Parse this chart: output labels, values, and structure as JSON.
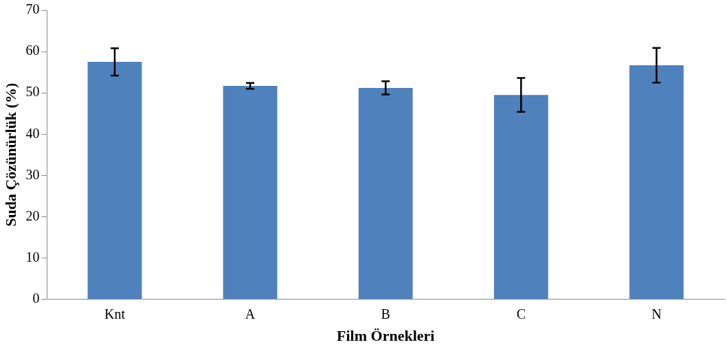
{
  "chart_data": {
    "type": "bar",
    "xlabel": "Film Örnekleri",
    "ylabel": "Suda Çözünürlük (%)",
    "categories": [
      "Knt",
      "A",
      "B",
      "C",
      "N"
    ],
    "values": [
      57.5,
      51.7,
      51.2,
      49.5,
      56.7
    ],
    "errors": [
      3.3,
      0.7,
      1.6,
      4.1,
      4.2
    ],
    "color": "#4f81bd",
    "ylim": [
      0,
      70
    ],
    "yticks": [
      0,
      10,
      20,
      30,
      40,
      50,
      60,
      70
    ],
    "grid": false,
    "legend": false
  }
}
